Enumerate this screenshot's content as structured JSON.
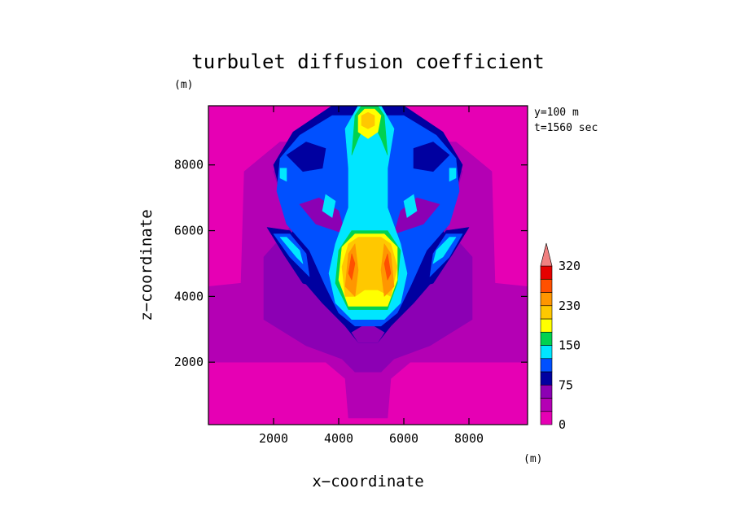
{
  "chart_data": {
    "type": "heatmap",
    "title": "turbulet diffusion coefficient",
    "xlabel": "x−coordinate",
    "ylabel": "z−coordinate",
    "x_unit": "(m)",
    "y_unit": "(m)",
    "annotations": [
      "y=100 m",
      "t=1560 sec"
    ],
    "xlim": [
      0,
      9800
    ],
    "ylim": [
      100,
      9800
    ],
    "x_ticks": [
      2000,
      4000,
      6000,
      8000
    ],
    "y_ticks": [
      2000,
      4000,
      6000,
      8000
    ],
    "x_tick_labels": [
      "2000",
      "4000",
      "6000",
      "8000"
    ],
    "y_tick_labels": [
      "2000",
      "4000",
      "6000",
      "8000"
    ],
    "colorbar": {
      "levels": [
        0,
        25,
        50,
        75,
        100,
        125,
        150,
        175,
        200,
        230,
        260,
        290,
        320
      ],
      "tick_values": [
        0,
        75,
        150,
        230,
        320
      ],
      "tick_labels": [
        "0",
        "75",
        "150",
        "230",
        "320"
      ],
      "colors": [
        "#e600b4",
        "#b400b4",
        "#8c00b4",
        "#0000a0",
        "#0050ff",
        "#00e6ff",
        "#00d250",
        "#ffff00",
        "#ffc800",
        "#ff9600",
        "#ff5000",
        "#e60000",
        "#f08080"
      ],
      "extend": "max"
    },
    "field": {
      "description_levels": "contour polygons in data units, drawn from low to high level",
      "regions": [
        {
          "level": 0,
          "points": [
            [
              0,
              100
            ],
            [
              9800,
              100
            ],
            [
              9800,
              9800
            ],
            [
              0,
              9800
            ]
          ]
        },
        {
          "level": 1,
          "points": [
            [
              4300,
              300
            ],
            [
              4200,
              1500
            ],
            [
              3600,
              2000
            ],
            [
              0,
              2000
            ],
            [
              0,
              4300
            ],
            [
              1000,
              4400
            ],
            [
              1100,
              7800
            ],
            [
              2200,
              8700
            ],
            [
              7600,
              8700
            ],
            [
              8700,
              7800
            ],
            [
              8800,
              4400
            ],
            [
              9800,
              4300
            ],
            [
              9800,
              2000
            ],
            [
              6200,
              2000
            ],
            [
              5600,
              1500
            ],
            [
              5500,
              300
            ]
          ]
        },
        {
          "level": 2,
          "points": [
            [
              4500,
              1700
            ],
            [
              4100,
              2100
            ],
            [
              3000,
              2500
            ],
            [
              1700,
              3300
            ],
            [
              1700,
              5200
            ],
            [
              2600,
              6200
            ],
            [
              2300,
              6800
            ],
            [
              2000,
              7800
            ],
            [
              2800,
              8700
            ],
            [
              4000,
              9700
            ],
            [
              5900,
              9700
            ],
            [
              7100,
              8700
            ],
            [
              7800,
              7800
            ],
            [
              7500,
              6800
            ],
            [
              7200,
              6200
            ],
            [
              8100,
              5200
            ],
            [
              8100,
              3300
            ],
            [
              6800,
              2500
            ],
            [
              5700,
              2100
            ],
            [
              5300,
              1700
            ]
          ]
        },
        {
          "level": 3,
          "points": [
            [
              4600,
              2600
            ],
            [
              4200,
              3100
            ],
            [
              3500,
              3800
            ],
            [
              2800,
              4600
            ],
            [
              2300,
              5400
            ],
            [
              2800,
              6400
            ],
            [
              2200,
              7200
            ],
            [
              2000,
              8000
            ],
            [
              2600,
              9000
            ],
            [
              3800,
              9800
            ],
            [
              6000,
              9800
            ],
            [
              7200,
              9000
            ],
            [
              7800,
              8000
            ],
            [
              7600,
              7200
            ],
            [
              7000,
              6400
            ],
            [
              7500,
              5400
            ],
            [
              7000,
              4600
            ],
            [
              6300,
              3800
            ],
            [
              5600,
              3100
            ],
            [
              5200,
              2600
            ]
          ]
        },
        {
          "level": 2,
          "points": [
            [
              4600,
              2600
            ],
            [
              5200,
              2600
            ],
            [
              5400,
              2900
            ],
            [
              4900,
              3200
            ],
            [
              4400,
              2900
            ]
          ]
        },
        {
          "level": 4,
          "points": [
            [
              4500,
              3100
            ],
            [
              4000,
              3500
            ],
            [
              3600,
              4300
            ],
            [
              3100,
              5400
            ],
            [
              2400,
              6200
            ],
            [
              2100,
              7200
            ],
            [
              2200,
              8200
            ],
            [
              2800,
              8900
            ],
            [
              3800,
              9500
            ],
            [
              6000,
              9500
            ],
            [
              7000,
              8900
            ],
            [
              7600,
              8200
            ],
            [
              7700,
              7200
            ],
            [
              7400,
              6200
            ],
            [
              6700,
              5400
            ],
            [
              6200,
              4300
            ],
            [
              5800,
              3500
            ],
            [
              5300,
              3100
            ]
          ]
        },
        {
          "level": 3,
          "points": [
            [
              2400,
              8300
            ],
            [
              3000,
              8700
            ],
            [
              3600,
              8500
            ],
            [
              3500,
              7900
            ],
            [
              2900,
              7800
            ]
          ]
        },
        {
          "level": 3,
          "points": [
            [
              6300,
              8500
            ],
            [
              6900,
              8700
            ],
            [
              7400,
              8300
            ],
            [
              6900,
              7800
            ],
            [
              6300,
              7900
            ]
          ]
        },
        {
          "level": 2,
          "points": [
            [
              2800,
              6800
            ],
            [
              3300,
              6200
            ],
            [
              4200,
              5900
            ],
            [
              4000,
              6600
            ],
            [
              3400,
              7000
            ]
          ]
        },
        {
          "level": 2,
          "points": [
            [
              5700,
              5900
            ],
            [
              6600,
              6200
            ],
            [
              7100,
              6800
            ],
            [
              6400,
              7000
            ],
            [
              5900,
              6600
            ]
          ]
        },
        {
          "level": 3,
          "points": [
            [
              1800,
              6100
            ],
            [
              2300,
              5300
            ],
            [
              2900,
              4400
            ],
            [
              3300,
              4300
            ],
            [
              3100,
              5200
            ],
            [
              2500,
              6000
            ]
          ]
        },
        {
          "level": 3,
          "points": [
            [
              6500,
              4300
            ],
            [
              6900,
              4400
            ],
            [
              7500,
              5300
            ],
            [
              8000,
              6100
            ],
            [
              7300,
              6000
            ],
            [
              6700,
              5200
            ]
          ]
        },
        {
          "level": 4,
          "points": [
            [
              2000,
              5900
            ],
            [
              2500,
              5200
            ],
            [
              3100,
              4600
            ],
            [
              3000,
              5300
            ],
            [
              2500,
              5900
            ]
          ]
        },
        {
          "level": 4,
          "points": [
            [
              6800,
              4600
            ],
            [
              7400,
              5200
            ],
            [
              7800,
              5900
            ],
            [
              7300,
              5900
            ],
            [
              6900,
              5300
            ]
          ]
        },
        {
          "level": 5,
          "points": [
            [
              2200,
              5800
            ],
            [
              2700,
              5200
            ],
            [
              2900,
              5000
            ],
            [
              2800,
              5400
            ],
            [
              2400,
              5800
            ]
          ]
        },
        {
          "level": 5,
          "points": [
            [
              6900,
              5000
            ],
            [
              7200,
              5200
            ],
            [
              7600,
              5800
            ],
            [
              7400,
              5800
            ],
            [
              7000,
              5400
            ]
          ]
        },
        {
          "level": 5,
          "points": [
            [
              4400,
              3300
            ],
            [
              3900,
              3800
            ],
            [
              3700,
              4700
            ],
            [
              3900,
              5600
            ],
            [
              4300,
              6700
            ],
            [
              4300,
              7900
            ],
            [
              4200,
              9100
            ],
            [
              4600,
              9800
            ],
            [
              5300,
              9800
            ],
            [
              5700,
              9100
            ],
            [
              5500,
              7900
            ],
            [
              5500,
              6700
            ],
            [
              5900,
              5600
            ],
            [
              6100,
              4700
            ],
            [
              5900,
              3800
            ],
            [
              5400,
              3300
            ]
          ]
        },
        {
          "level": 5,
          "points": [
            [
              3500,
              6600
            ],
            [
              3800,
              6400
            ],
            [
              3900,
              6900
            ],
            [
              3600,
              7100
            ]
          ]
        },
        {
          "level": 5,
          "points": [
            [
              6000,
              6900
            ],
            [
              6100,
              6400
            ],
            [
              6400,
              6600
            ],
            [
              6300,
              7100
            ]
          ]
        },
        {
          "level": 5,
          "points": [
            [
              2200,
              7600
            ],
            [
              2400,
              7500
            ],
            [
              2400,
              7900
            ],
            [
              2200,
              7900
            ]
          ]
        },
        {
          "level": 5,
          "points": [
            [
              7400,
              7500
            ],
            [
              7600,
              7600
            ],
            [
              7600,
              7900
            ],
            [
              7400,
              7900
            ]
          ]
        },
        {
          "level": 6,
          "points": [
            [
              4400,
              8300
            ],
            [
              4500,
              9500
            ],
            [
              4700,
              9800
            ],
            [
              5200,
              9800
            ],
            [
              5400,
              9500
            ],
            [
              5500,
              8300
            ],
            [
              5300,
              8800
            ],
            [
              5100,
              9200
            ],
            [
              4800,
              9200
            ],
            [
              4600,
              8800
            ]
          ]
        },
        {
          "level": 6,
          "points": [
            [
              4300,
              3600
            ],
            [
              3900,
              4400
            ],
            [
              4000,
              5400
            ],
            [
              4400,
              6000
            ],
            [
              5500,
              6000
            ],
            [
              5900,
              5400
            ],
            [
              5800,
              4400
            ],
            [
              5500,
              3600
            ]
          ]
        },
        {
          "level": 7,
          "points": [
            [
              4600,
              9000
            ],
            [
              4600,
              9500
            ],
            [
              4800,
              9700
            ],
            [
              5100,
              9700
            ],
            [
              5300,
              9500
            ],
            [
              5200,
              9000
            ],
            [
              4900,
              8800
            ]
          ]
        },
        {
          "level": 7,
          "points": [
            [
              4300,
              3700
            ],
            [
              4000,
              4500
            ],
            [
              4100,
              5500
            ],
            [
              4500,
              5900
            ],
            [
              5400,
              5900
            ],
            [
              5800,
              5500
            ],
            [
              5800,
              4500
            ],
            [
              5500,
              3700
            ]
          ]
        },
        {
          "level": 8,
          "points": [
            [
              4700,
              9200
            ],
            [
              4700,
              9500
            ],
            [
              4900,
              9600
            ],
            [
              5100,
              9500
            ],
            [
              5100,
              9200
            ],
            [
              4900,
              9100
            ]
          ]
        },
        {
          "level": 8,
          "points": [
            [
              4200,
              4000
            ],
            [
              4100,
              4900
            ],
            [
              4300,
              5600
            ],
            [
              4600,
              5800
            ],
            [
              5300,
              5800
            ],
            [
              5600,
              5600
            ],
            [
              5800,
              4900
            ],
            [
              5600,
              4000
            ],
            [
              5200,
              4200
            ],
            [
              4800,
              4200
            ],
            [
              4500,
              4000
            ]
          ]
        },
        {
          "level": 9,
          "points": [
            [
              4200,
              4300
            ],
            [
              4300,
              5300
            ],
            [
              4500,
              5600
            ],
            [
              4600,
              4800
            ],
            [
              4500,
              4000
            ]
          ]
        },
        {
          "level": 9,
          "points": [
            [
              5400,
              4000
            ],
            [
              5300,
              4800
            ],
            [
              5400,
              5600
            ],
            [
              5600,
              5300
            ],
            [
              5700,
              4300
            ]
          ]
        },
        {
          "level": 10,
          "points": [
            [
              4300,
              4700
            ],
            [
              4400,
              5300
            ],
            [
              4500,
              5000
            ],
            [
              4400,
              4500
            ]
          ]
        },
        {
          "level": 10,
          "points": [
            [
              5500,
              4500
            ],
            [
              5400,
              5000
            ],
            [
              5500,
              5300
            ],
            [
              5600,
              4700
            ]
          ]
        }
      ]
    }
  }
}
